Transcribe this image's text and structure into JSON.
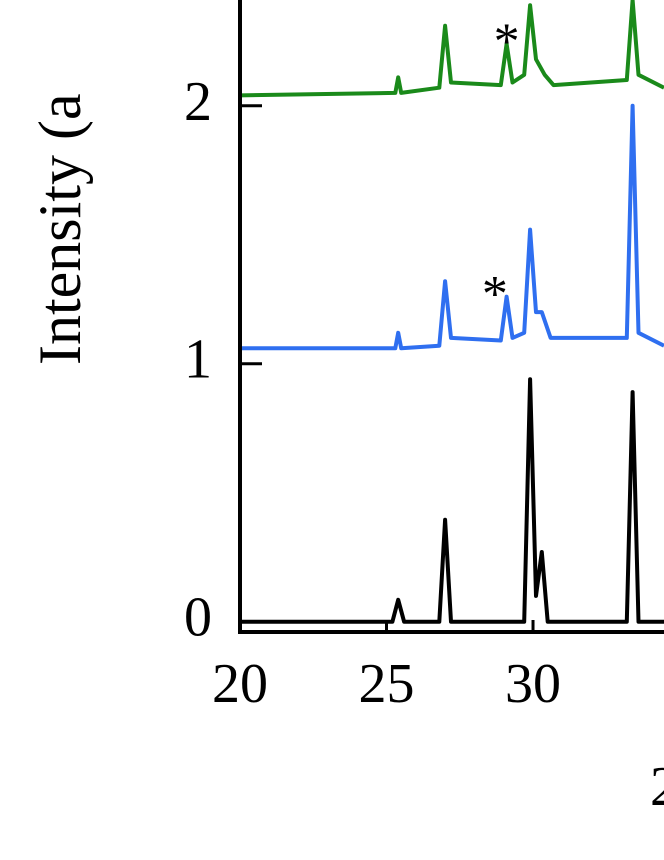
{
  "chart_data": {
    "type": "line",
    "y_label": "Intensity (a",
    "x_label": "2",
    "xlim": [
      20,
      34.47
    ],
    "ylim": [
      -0.04,
      2.41
    ],
    "xticks": [
      20,
      25,
      30
    ],
    "yticks": [
      0,
      1,
      2
    ],
    "series": [
      {
        "color": "#000000",
        "x": [
          20,
          25.2,
          25.4,
          25.6,
          26.8,
          27.0,
          27.2,
          29.7,
          29.9,
          30.1,
          30.3,
          30.5,
          33.2,
          33.4,
          33.6,
          34.47
        ],
        "values": [
          0,
          0,
          0.085,
          0,
          0,
          0.395,
          0,
          0,
          0.94,
          0.1,
          0.27,
          0,
          0,
          0.89,
          0,
          0
        ]
      },
      {
        "color": "#2f6ff0",
        "x": [
          20,
          25.3,
          25.4,
          25.5,
          26.8,
          27.0,
          27.2,
          28.9,
          29.1,
          29.3,
          29.7,
          29.9,
          30.1,
          30.3,
          30.6,
          33.2,
          33.4,
          33.6,
          34.47
        ],
        "values": [
          1.06,
          1.06,
          1.12,
          1.06,
          1.07,
          1.32,
          1.1,
          1.09,
          1.26,
          1.1,
          1.12,
          1.52,
          1.2,
          1.2,
          1.1,
          1.1,
          2.0,
          1.12,
          1.07
        ]
      },
      {
        "color": "#1a8a1a",
        "x": [
          20,
          25.3,
          25.4,
          25.5,
          26.8,
          27.0,
          27.2,
          28.9,
          29.1,
          29.3,
          29.7,
          29.9,
          30.1,
          30.4,
          30.7,
          33.2,
          33.4,
          33.6,
          34.47
        ],
        "values": [
          2.04,
          2.05,
          2.11,
          2.05,
          2.07,
          2.31,
          2.09,
          2.08,
          2.24,
          2.09,
          2.12,
          2.39,
          2.18,
          2.12,
          2.08,
          2.1,
          2.41,
          2.12,
          2.07
        ]
      }
    ],
    "annotations": [
      {
        "text": "*",
        "x": 28.7,
        "y": 1.32
      },
      {
        "text": "*",
        "x": 29.1,
        "y": 2.3
      }
    ]
  }
}
